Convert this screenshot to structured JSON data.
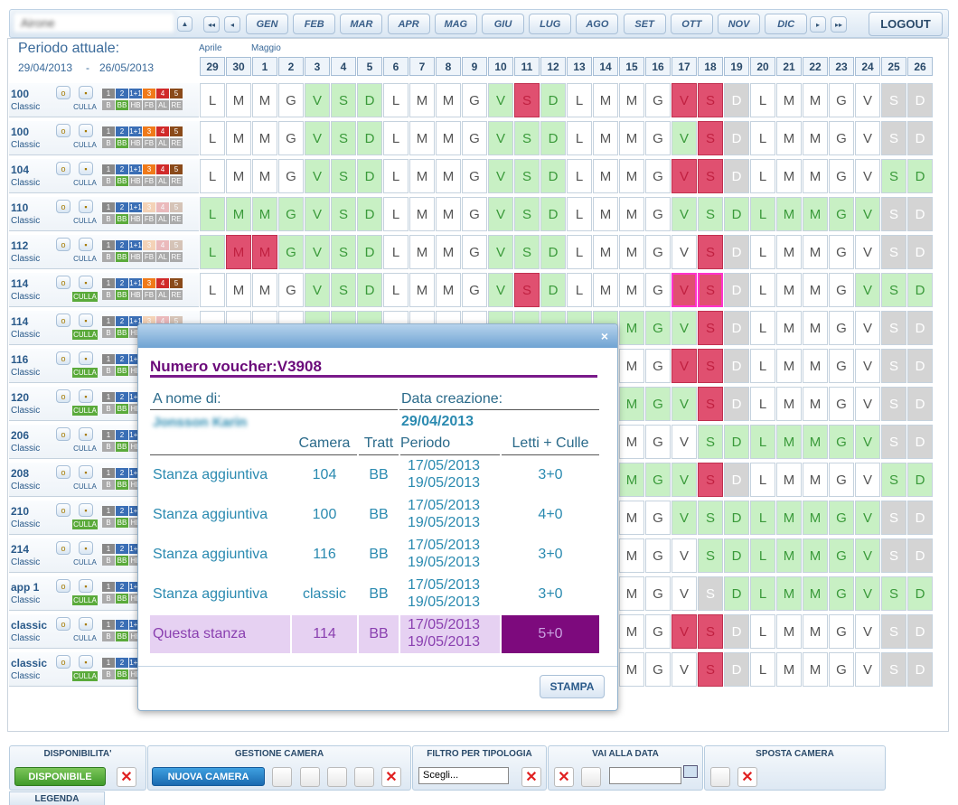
{
  "header": {
    "hotel": "Airone",
    "months": [
      "GEN",
      "FEB",
      "MAR",
      "APR",
      "MAG",
      "GIU",
      "LUG",
      "AGO",
      "SET",
      "OTT",
      "NOV",
      "DIC"
    ],
    "logout": "LOGOUT",
    "period_label": "Periodo attuale:",
    "period_from": "29/04/2013",
    "period_sep": "-",
    "period_to": "26/05/2013"
  },
  "calendar": {
    "month_labels": [
      "Aprile",
      "Maggio"
    ],
    "days": [
      "29",
      "30",
      "1",
      "2",
      "3",
      "4",
      "5",
      "6",
      "7",
      "8",
      "9",
      "10",
      "11",
      "12",
      "13",
      "14",
      "15",
      "16",
      "17",
      "18",
      "19",
      "20",
      "21",
      "22",
      "23",
      "24",
      "25",
      "26"
    ],
    "weekdays": [
      "L",
      "M",
      "M",
      "G",
      "V",
      "S",
      "D",
      "L",
      "M",
      "M",
      "G",
      "V",
      "S",
      "D",
      "L",
      "M",
      "M",
      "G",
      "V",
      "S",
      "D",
      "L",
      "M",
      "M",
      "G",
      "V",
      "S",
      "D"
    ],
    "crib_label": "CULLA",
    "bed_labels": [
      "1",
      "2",
      "1+1",
      "3",
      "4",
      "5"
    ],
    "board_labels": [
      "B",
      "BB",
      "HB",
      "FB",
      "AL",
      "RE"
    ],
    "cell_colors": {
      "w": "#ffffff",
      "g": "#c8f0c4",
      "x": "#d4d4d4",
      "r": "#e05070",
      "p": "#e05070"
    },
    "rooms": [
      {
        "name": "100",
        "type": "Classic",
        "beds_active": true,
        "crib_active": false,
        "cells": "wwwwgggwwwwgrgwwwwrrxwwwwwxx"
      },
      {
        "name": "100",
        "type": "Classic",
        "beds_active": true,
        "crib_active": false,
        "cells": "wwwwgggwwwwgggwwwwgrxwwwwwxx"
      },
      {
        "name": "104",
        "type": "Classic",
        "beds_active": true,
        "crib_active": false,
        "cells": "wwwwgggwwwwgggwwwwrrxwwwwwgg"
      },
      {
        "name": "110",
        "type": "Classic",
        "beds_active": false,
        "crib_active": false,
        "cells": "gggggggwwwwgggwwwwggggggggxx"
      },
      {
        "name": "112",
        "type": "Classic",
        "beds_active": false,
        "crib_active": false,
        "cells": "grrggggwwwwgggwwwwwrxwwwwwxx"
      },
      {
        "name": "114",
        "type": "Classic",
        "beds_active": true,
        "crib_active": true,
        "cells": "wwwwgggwwwwgrgwwwwppxwwwwggg"
      },
      {
        "name": "114",
        "type": "Classic",
        "beds_active": false,
        "crib_active": true,
        "cells": "wwwwgggwwwwggggggggrxwwwwwxx"
      },
      {
        "name": "116",
        "type": "Classic",
        "beds_active": false,
        "crib_active": true,
        "cells": "wwwwgggwwwwgggwwwwrrxwwwwwxx"
      },
      {
        "name": "120",
        "type": "Classic",
        "beds_active": false,
        "crib_active": true,
        "cells": "wwwwgggwwwwgggwwgggrxwwwwwxx"
      },
      {
        "name": "206",
        "type": "Classic",
        "beds_active": false,
        "crib_active": false,
        "cells": "wwwwgggwwwwgggwwwwwgggggggxx"
      },
      {
        "name": "208",
        "type": "Classic",
        "beds_active": false,
        "crib_active": false,
        "cells": "wwwwgggwwwwgggwwgggrxwwwwwgg"
      },
      {
        "name": "210",
        "type": "Classic",
        "beds_active": false,
        "crib_active": true,
        "cells": "wwwwgggwwwwgggwwwwggggggggxx"
      },
      {
        "name": "214",
        "type": "Classic",
        "beds_active": false,
        "crib_active": false,
        "cells": "wwwwgggwwwwgggwwwwwgggggggxx"
      },
      {
        "name": "app 1",
        "type": "Classic",
        "beds_active": false,
        "crib_active": true,
        "cells": "wwwwgggwwwwgggwwwwwxgggggggg"
      },
      {
        "name": "classic",
        "type": "Classic",
        "beds_active": false,
        "crib_active": false,
        "cells": "wwwwgggwwwwgggwwwwrrxwwwwwxx"
      },
      {
        "name": "classic",
        "type": "Classic",
        "beds_active": false,
        "crib_active": true,
        "cells": "wwwwgggwwwwgggwwwwwrxwwwwwxx"
      }
    ]
  },
  "modal": {
    "title": "Numero voucher:V3908",
    "name_label": "A nome di:",
    "name": "Jonsson Karin",
    "date_label": "Data creazione:",
    "date": "29/04/2013",
    "columns": [
      "Camera",
      "Tratt",
      "Periodo",
      "Letti + Culle"
    ],
    "rows": [
      {
        "desc": "Stanza aggiuntiva",
        "camera": "104",
        "tratt": "BB",
        "from": "17/05/2013",
        "to": "19/05/2013",
        "beds": "3+0"
      },
      {
        "desc": "Stanza aggiuntiva",
        "camera": "100",
        "tratt": "BB",
        "from": "17/05/2013",
        "to": "19/05/2013",
        "beds": "4+0"
      },
      {
        "desc": "Stanza aggiuntiva",
        "camera": "116",
        "tratt": "BB",
        "from": "17/05/2013",
        "to": "19/05/2013",
        "beds": "3+0"
      },
      {
        "desc": "Stanza aggiuntiva",
        "camera": "classic",
        "tratt": "BB",
        "from": "17/05/2013",
        "to": "19/05/2013",
        "beds": "3+0"
      },
      {
        "desc": "Questa stanza",
        "camera": "114",
        "tratt": "BB",
        "from": "17/05/2013",
        "to": "19/05/2013",
        "beds": "5+0"
      }
    ],
    "print": "STAMPA"
  },
  "toolbar": {
    "sections": [
      "DISPONIBILITA'",
      "GESTIONE CAMERA",
      "FILTRO PER TIPOLOGIA",
      "VAI ALLA DATA",
      "SPOSTA CAMERA"
    ],
    "available": "DISPONIBILE",
    "new_room": "NUOVA CAMERA",
    "select": "Scegli...",
    "legend": "LEGENDA"
  }
}
